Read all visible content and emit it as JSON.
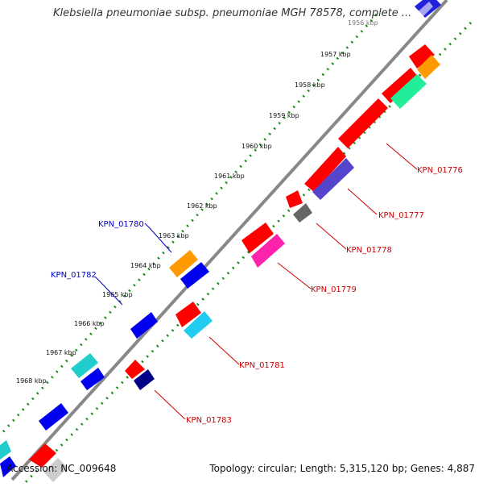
{
  "title": "Klebsiella pneumoniae subsp. pneumoniae MGH 78578, complete ...",
  "footer": {
    "accession": "Accession: NC_009648",
    "summary": "Topology: circular; Length: 5,315,120 bp; Genes: 4,887"
  },
  "ruler_labels": [
    "1956 kbp",
    "1957 kbp",
    "1958 kbp",
    "1959 kbp",
    "1960 kbp",
    "1961 kbp",
    "1962 kbp",
    "1963 kbp",
    "1964 kbp",
    "1965 kbp",
    "1966 kbp",
    "1967 kbp",
    "1968 kbp"
  ],
  "gene_labels_forward": [
    "KPN_01780",
    "KPN_01782"
  ],
  "gene_labels_reverse": [
    "KPN_01776",
    "KPN_01777",
    "KPN_01778",
    "KPN_01779",
    "KPN_01781",
    "KPN_01783"
  ],
  "colors": {
    "forward_label": "#0000cc",
    "reverse_label": "#cc0000",
    "ruler_dots": "#1a8a1a",
    "backbone": "#888888"
  }
}
